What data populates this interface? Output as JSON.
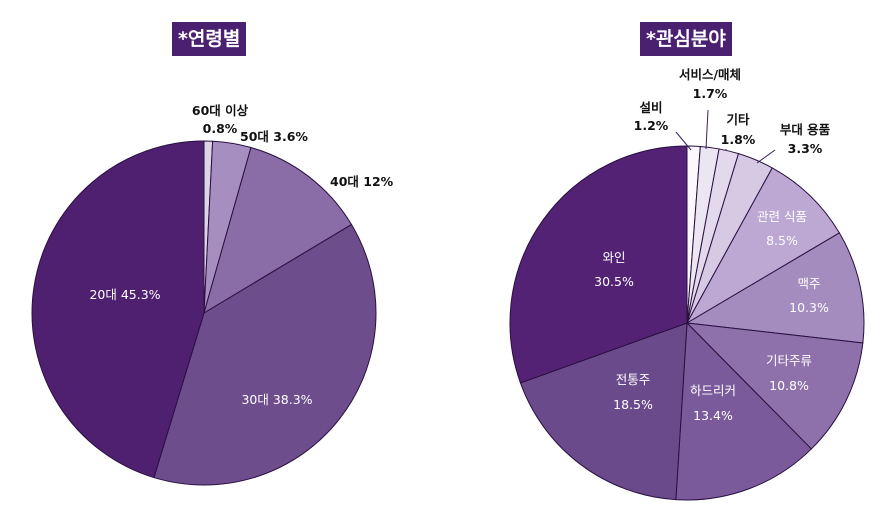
{
  "chart_data": [
    {
      "type": "pie",
      "title": "*연령별",
      "slices": [
        {
          "label": "60대 이상",
          "value": 0.8,
          "value_label": "0.8%",
          "color": "#ded4e8"
        },
        {
          "label": "50대",
          "value": 3.6,
          "value_label": "3.6%",
          "color": "#a68fc0"
        },
        {
          "label": "40대",
          "value": 12,
          "value_label": "12%",
          "color": "#8a6ca7"
        },
        {
          "label": "30대",
          "value": 38.3,
          "value_label": "38.3%",
          "color": "#6e4d8d"
        },
        {
          "label": "20대",
          "value": 45.3,
          "value_label": "45.3%",
          "color": "#502070"
        }
      ]
    },
    {
      "type": "pie",
      "title": "*관심분야",
      "slices": [
        {
          "label": "설비",
          "value": 1.2,
          "value_label": "1.2%",
          "color": "#faf8fc"
        },
        {
          "label": "서비스/매체",
          "value": 1.7,
          "value_label": "1.7%",
          "color": "#ece6f2"
        },
        {
          "label": "기타",
          "value": 1.8,
          "value_label": "1.8%",
          "color": "#e2d9ec"
        },
        {
          "label": "부대 용품",
          "value": 3.3,
          "value_label": "3.3%",
          "color": "#d6c9e3"
        },
        {
          "label": "관련 식품",
          "value": 8.5,
          "value_label": "8.5%",
          "color": "#bca8d2"
        },
        {
          "label": "맥주",
          "value": 10.3,
          "value_label": "10.3%",
          "color": "#a48cbf"
        },
        {
          "label": "기타주류",
          "value": 10.8,
          "value_label": "10.8%",
          "color": "#8e71ab"
        },
        {
          "label": "하드리커",
          "value": 13.4,
          "value_label": "13.4%",
          "color": "#7a5a9a"
        },
        {
          "label": "전통주",
          "value": 18.5,
          "value_label": "18.5%",
          "color": "#6b4a8c"
        },
        {
          "label": "와인",
          "value": 30.5,
          "value_label": "30.5%",
          "color": "#542274"
        }
      ]
    }
  ],
  "colors": {
    "title_bg": "#4a2070",
    "title_text": "#ffffff",
    "slice_border": "#2a1040",
    "inside_label": "#ffffff",
    "outside_label": "#111111"
  }
}
